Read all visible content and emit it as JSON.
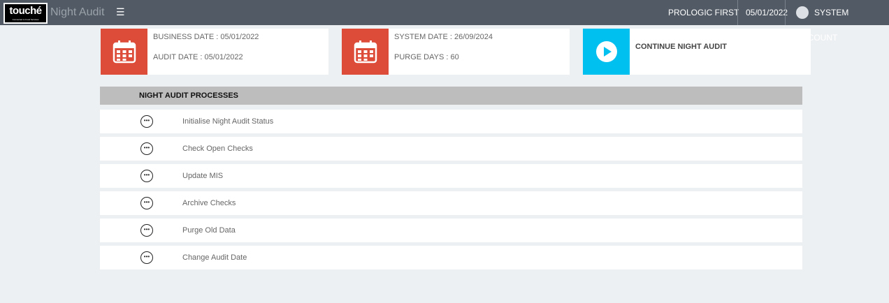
{
  "header": {
    "logo_text": "touché",
    "logo_tagline": "Connected to Food Services",
    "app_title": "Night Audit",
    "menu_icon": "hamburger-icon",
    "property": "PROLOGIC FIRST",
    "date": "05/01/2022",
    "user": "SYSTEM ACCOUNT"
  },
  "cards": [
    {
      "icon": "calendar-icon",
      "color": "#dd4b39",
      "line1": "BUSINESS DATE : 05/01/2022",
      "line2": "AUDIT DATE : 05/01/2022"
    },
    {
      "icon": "calendar-icon",
      "color": "#dd4b39",
      "line1": "SYSTEM DATE : 26/09/2024",
      "line2": "PURGE DAYS : 60"
    },
    {
      "icon": "play-icon",
      "color": "#00c0ef",
      "label": "CONTINUE NIGHT AUDIT"
    }
  ],
  "processes": {
    "title": "NIGHT AUDIT PROCESSES",
    "status_icon": "ellipsis-circle-icon",
    "items": [
      "Initialise Night Audit Status",
      "Check Open Checks",
      "Update MIS",
      "Archive Checks",
      "Purge Old Data",
      "Change Audit Date"
    ]
  }
}
